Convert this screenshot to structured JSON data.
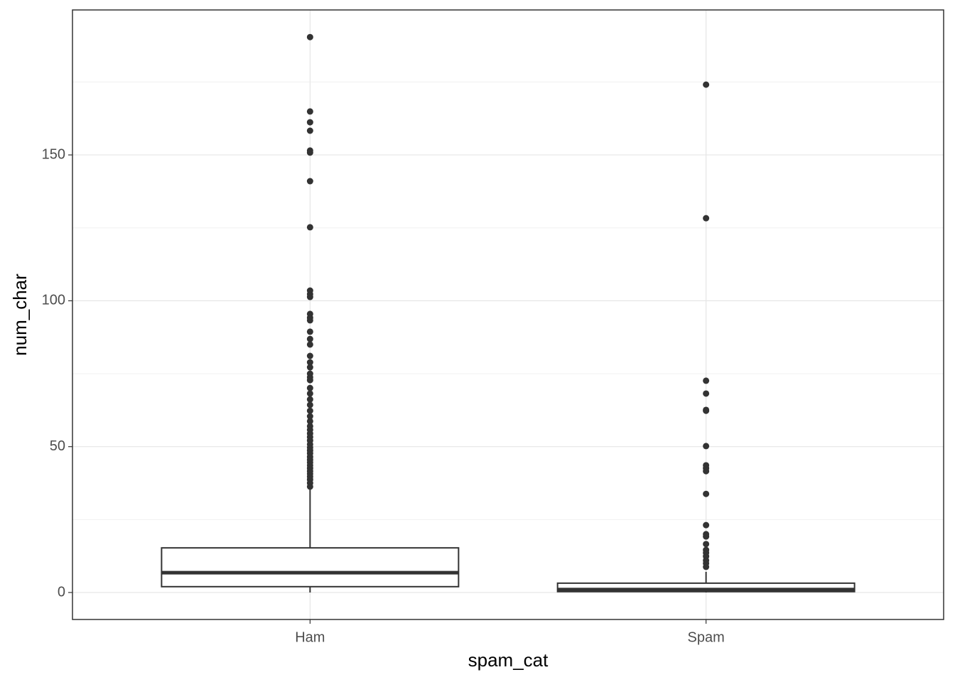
{
  "chart_data": {
    "type": "box",
    "x_label": "spam_cat",
    "y_label": "num_char",
    "categories": [
      "Ham",
      "Spam"
    ],
    "ylim": [
      -9.25,
      199.7
    ],
    "yticks": [
      0,
      50,
      100,
      150
    ],
    "grid": true,
    "color": "#333333",
    "boxes": [
      {
        "whislo": 0,
        "q1": 2,
        "med": 6.8,
        "q3": 15.3,
        "whishi": 35.8,
        "fliers": [
          190.4,
          164.9,
          161.2,
          158.3,
          151.5,
          150.8,
          141,
          125.2,
          103.5,
          102.3,
          101.3,
          95.5,
          94.2,
          93.3,
          89.4,
          86.9,
          85,
          81.1,
          78.9,
          77.2,
          75,
          73.8,
          72.8,
          70.1,
          68.2,
          66.2,
          64.3,
          62.3,
          60.4,
          58.7,
          57,
          55.8,
          54.5,
          53.3,
          52.1,
          50.8,
          49.7,
          48.7,
          47.7,
          46.5,
          45.5,
          44.6,
          43.6,
          42.6,
          41.6,
          40.7,
          39.7,
          38.7,
          37.5,
          36.3
        ]
      },
      {
        "whislo": 0,
        "q1": 0.3,
        "med": 1,
        "q3": 3.2,
        "whishi": 7.1,
        "fliers": [
          174.1,
          128.3,
          72.6,
          68.2,
          62.6,
          62.3,
          50.2,
          43.6,
          42.6,
          41.6,
          33.8,
          23.1,
          20,
          19.2,
          16.6,
          14.6,
          13.6,
          12.4,
          11,
          10,
          8.8
        ]
      }
    ]
  }
}
